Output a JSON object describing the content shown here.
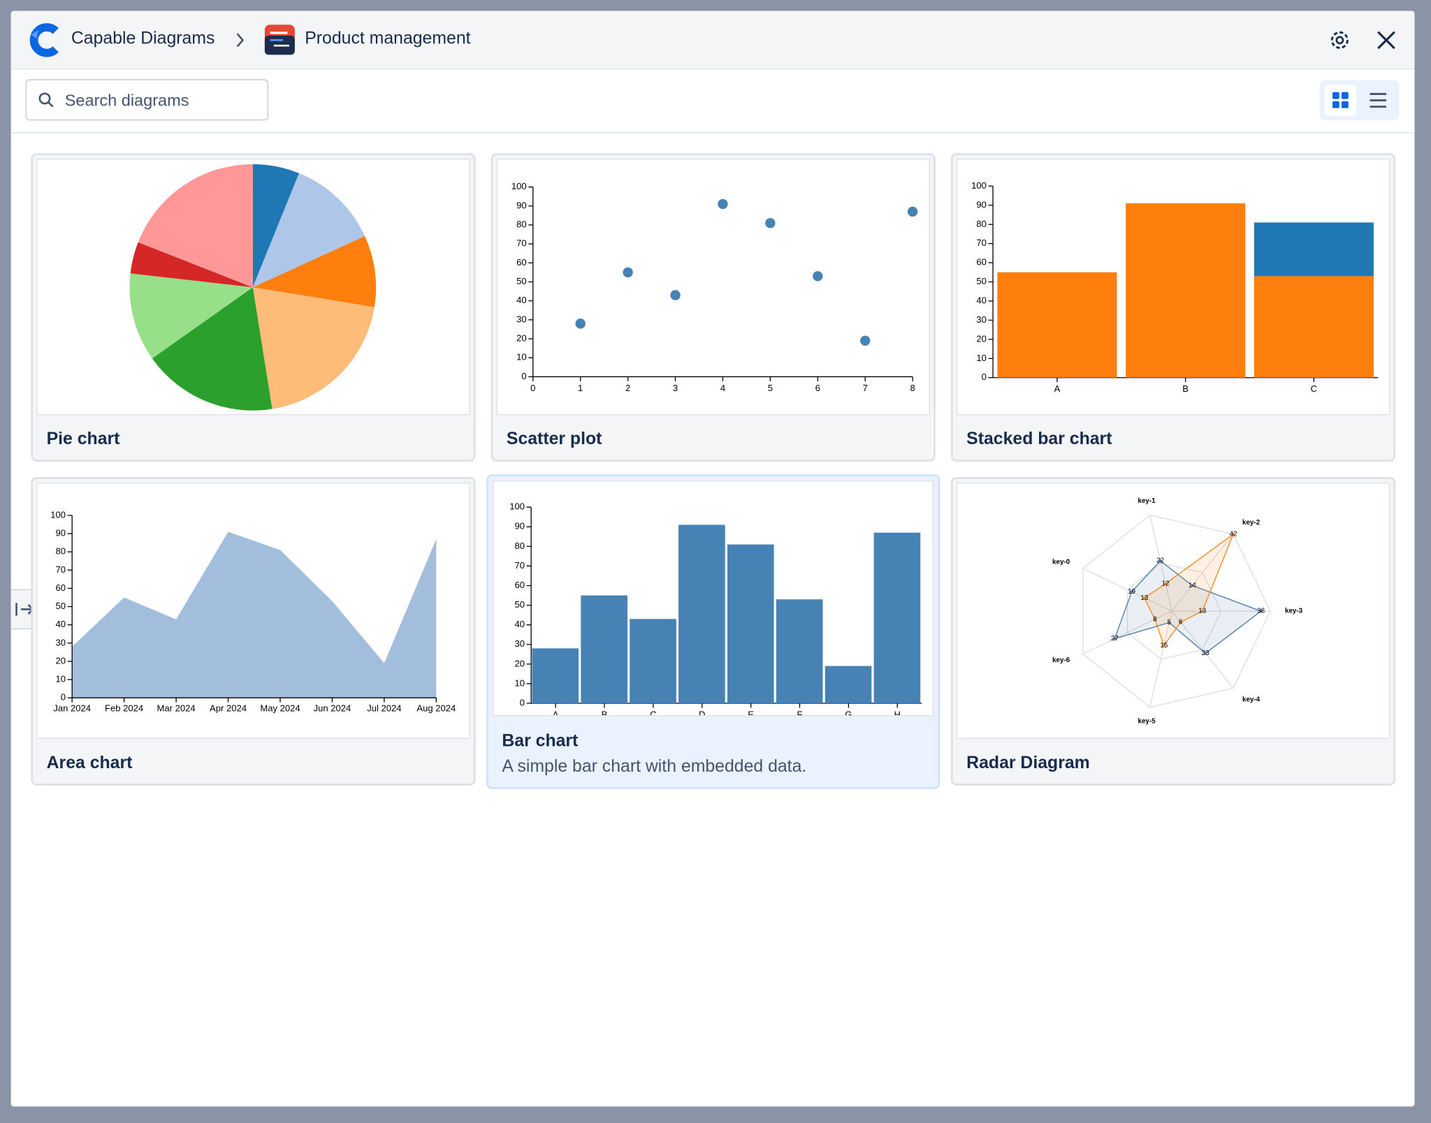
{
  "header": {
    "app": "Capable Diagrams",
    "space": "Product management"
  },
  "search": {
    "placeholder": "Search diagrams"
  },
  "cards": [
    {
      "title": "Pie chart",
      "chart": {
        "type": "pie",
        "values": [
          28,
          55,
          43,
          91,
          81,
          53,
          19,
          87
        ],
        "colors": [
          "#1f77b4",
          "#aec7e8",
          "#ff7f0e",
          "#ffbb78",
          "#2ca02c",
          "#98df8a",
          "#d62728",
          "#ff9896"
        ]
      }
    },
    {
      "title": "Scatter plot",
      "chart": {
        "type": "scatter",
        "x": [
          1,
          2,
          3,
          4,
          5,
          6,
          7,
          8
        ],
        "values": [
          28,
          55,
          43,
          91,
          81,
          53,
          19,
          87
        ],
        "color": "#4682b4",
        "xlim": [
          0,
          8
        ],
        "xticks": [
          0,
          1,
          2,
          3,
          4,
          5,
          6,
          7,
          8
        ],
        "ylim": [
          0,
          100
        ],
        "yticks": [
          0,
          10,
          20,
          30,
          40,
          50,
          60,
          70,
          80,
          90,
          100
        ]
      }
    },
    {
      "title": "Stacked bar chart",
      "chart": {
        "type": "stacked-bar",
        "categories": [
          "A",
          "B",
          "C"
        ],
        "series": [
          {
            "color": "#ff7f0e",
            "values": [
              55,
              91,
              53
            ]
          },
          {
            "color": "#1f77b4",
            "values": [
              0,
              0,
              28
            ]
          }
        ],
        "ylim": [
          0,
          100
        ],
        "yticks": [
          0,
          10,
          20,
          30,
          40,
          50,
          60,
          70,
          80,
          90,
          100
        ]
      }
    },
    {
      "title": "Area chart",
      "chart": {
        "type": "area",
        "x": [
          "Jan 2024",
          "Feb 2024",
          "Mar 2024",
          "Apr 2024",
          "May 2024",
          "Jun 2024",
          "Jul 2024",
          "Aug 2024"
        ],
        "values": [
          28,
          55,
          43,
          91,
          81,
          53,
          19,
          87
        ],
        "color": "#a3bddc",
        "ylim": [
          0,
          100
        ],
        "yticks": [
          0,
          10,
          20,
          30,
          40,
          50,
          60,
          70,
          80,
          90,
          100
        ]
      }
    },
    {
      "title": "Bar chart",
      "description": "A simple bar chart with embedded data.",
      "chart": {
        "type": "bar",
        "categories": [
          "A",
          "B",
          "C",
          "D",
          "E",
          "F",
          "G",
          "H"
        ],
        "values": [
          28,
          55,
          43,
          91,
          81,
          53,
          19,
          87
        ],
        "color": "#4682b4",
        "ylim": [
          0,
          100
        ],
        "yticks": [
          0,
          10,
          20,
          30,
          40,
          50,
          60,
          70,
          80,
          90,
          100
        ]
      }
    },
    {
      "title": "Radar Diagram",
      "chart": {
        "type": "radar",
        "axes": [
          "key-0",
          "key-1",
          "key-2",
          "key-3",
          "key-4",
          "key-5",
          "key-6"
        ],
        "series": [
          {
            "color": "#4c78a8",
            "values": [
              19,
              22,
              14,
              38,
              23,
              5,
              27
            ]
          },
          {
            "color": "#f58518",
            "values": [
              13,
              12,
              42,
              13,
              6,
              15,
              8
            ]
          }
        ]
      }
    }
  ]
}
